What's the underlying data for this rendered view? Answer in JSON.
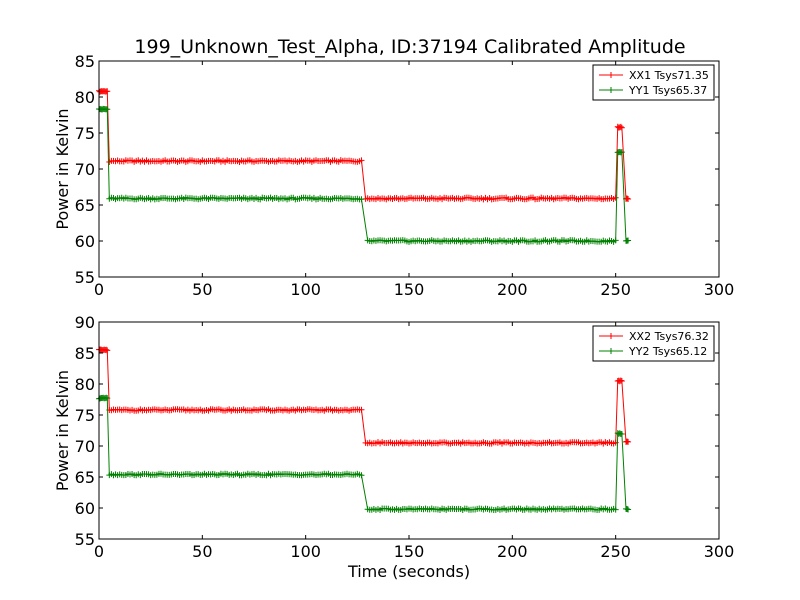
{
  "figure": {
    "title": "199_Unknown_Test_Alpha, ID:37194 Calibrated Amplitude"
  },
  "colors": {
    "xx": "#ff0000",
    "yy": "#008000",
    "axis": "#000000",
    "background": "#ffffff"
  },
  "chart_data": [
    {
      "type": "line",
      "title": "199_Unknown_Test_Alpha, ID:37194 Calibrated Amplitude",
      "xlabel": "",
      "ylabel": "Power in Kelvin",
      "xlim": [
        0,
        300
      ],
      "ylim": [
        55,
        85
      ],
      "xticks": [
        "0",
        "50",
        "100",
        "150",
        "200",
        "250",
        "300"
      ],
      "yticks": [
        "55",
        "60",
        "65",
        "70",
        "75",
        "80",
        "85"
      ],
      "grid": false,
      "legend_position": "top-right",
      "marker": "plus",
      "series": [
        {
          "name": "XX1 Tsys71.35",
          "color": "#ff0000",
          "segments": [
            {
              "x_start": 0,
              "x_end": 4,
              "y": 80.8
            },
            {
              "x_start": 5,
              "x_end": 127,
              "y": 71.1
            },
            {
              "x_start": 129,
              "x_end": 250,
              "y": 65.9
            },
            {
              "x_start": 251,
              "x_end": 253,
              "y": 75.8
            },
            {
              "x_start": 255,
              "x_end": 256,
              "y": 65.9
            }
          ]
        },
        {
          "name": "YY1 Tsys65.37",
          "color": "#008000",
          "segments": [
            {
              "x_start": 0,
              "x_end": 4,
              "y": 78.3
            },
            {
              "x_start": 5,
              "x_end": 127,
              "y": 65.9
            },
            {
              "x_start": 130,
              "x_end": 250,
              "y": 60.0
            },
            {
              "x_start": 251,
              "x_end": 253,
              "y": 72.3
            },
            {
              "x_start": 255,
              "x_end": 256,
              "y": 60.0
            }
          ]
        }
      ]
    },
    {
      "type": "line",
      "title": "",
      "xlabel": "Time (seconds)",
      "ylabel": "Power in Kelvin",
      "xlim": [
        0,
        300
      ],
      "ylim": [
        55,
        90
      ],
      "xticks": [
        "0",
        "50",
        "100",
        "150",
        "200",
        "250",
        "300"
      ],
      "yticks": [
        "55",
        "60",
        "65",
        "70",
        "75",
        "80",
        "85",
        "90"
      ],
      "grid": false,
      "legend_position": "top-right",
      "marker": "plus",
      "series": [
        {
          "name": "XX2 Tsys76.32",
          "color": "#ff0000",
          "segments": [
            {
              "x_start": 0,
              "x_end": 4,
              "y": 85.5
            },
            {
              "x_start": 5,
              "x_end": 127,
              "y": 75.8
            },
            {
              "x_start": 129,
              "x_end": 250,
              "y": 70.5
            },
            {
              "x_start": 251,
              "x_end": 253,
              "y": 80.5
            },
            {
              "x_start": 255,
              "x_end": 256,
              "y": 70.7
            }
          ]
        },
        {
          "name": "YY2 Tsys65.12",
          "color": "#008000",
          "segments": [
            {
              "x_start": 0,
              "x_end": 4,
              "y": 77.7
            },
            {
              "x_start": 5,
              "x_end": 127,
              "y": 65.4
            },
            {
              "x_start": 130,
              "x_end": 250,
              "y": 59.8
            },
            {
              "x_start": 251,
              "x_end": 253,
              "y": 72.0
            },
            {
              "x_start": 255,
              "x_end": 256,
              "y": 59.8
            }
          ]
        }
      ]
    }
  ]
}
